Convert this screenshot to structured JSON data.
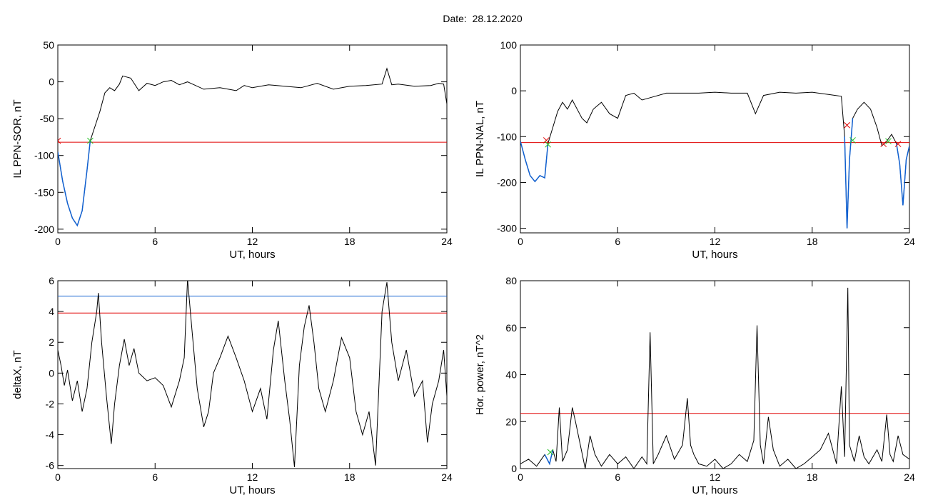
{
  "title": "Date:  28.12.2020",
  "chart_data": [
    {
      "type": "line",
      "xlabel": "UT, hours",
      "ylabel": "IL PPN-SOR, nT",
      "xlim": [
        0,
        24
      ],
      "ylim": [
        -205,
        50
      ],
      "xticks": [
        0,
        6,
        12,
        18,
        24
      ],
      "yticks": [
        50,
        0,
        -50,
        -100,
        -150,
        -200
      ],
      "hlines": [
        {
          "value": -82,
          "color": "#e00000"
        }
      ],
      "series": [
        {
          "color": "#000000",
          "x": [
            0,
            0.3,
            0.6,
            0.9,
            1.2,
            1.5,
            1.8,
            2.0,
            2.3,
            2.6,
            2.9,
            3.2,
            3.5,
            3.8,
            4.0,
            4.5,
            5.0,
            5.5,
            6.0,
            6.5,
            7.0,
            7.5,
            8.0,
            9.0,
            10.0,
            11.0,
            11.5,
            12.0,
            13.0,
            14.0,
            15.0,
            16.0,
            17.0,
            18.0,
            19.0,
            20.0,
            20.3,
            20.6,
            21.0,
            22.0,
            23.0,
            23.5,
            23.8,
            24.0
          ],
          "y": [
            -95,
            -135,
            -165,
            -185,
            -195,
            -175,
            -120,
            -80,
            -60,
            -40,
            -15,
            -8,
            -12,
            -3,
            8,
            5,
            -12,
            -2,
            -5,
            0,
            2,
            -4,
            0,
            -10,
            -8,
            -12,
            -5,
            -8,
            -4,
            -6,
            -8,
            -2,
            -10,
            -6,
            -5,
            -3,
            18,
            -4,
            -3,
            -6,
            -5,
            -2,
            -3,
            -30
          ],
          "color_ranges": [
            {
              "from": 0,
              "to": 2.0,
              "color": "#1060d0"
            }
          ]
        }
      ],
      "markers": [
        {
          "x": 0.0,
          "y": -80,
          "symbol": "x",
          "color": "#e00000"
        },
        {
          "x": 2.0,
          "y": -80,
          "symbol": "x",
          "color": "#20c020"
        }
      ]
    },
    {
      "type": "line",
      "xlabel": "UT, hours",
      "ylabel": "IL PPN-NAL, nT",
      "xlim": [
        0,
        24
      ],
      "ylim": [
        -310,
        100
      ],
      "xticks": [
        0,
        6,
        12,
        18,
        24
      ],
      "yticks": [
        100,
        0,
        -100,
        -200,
        -300
      ],
      "hlines": [
        {
          "value": -113,
          "color": "#e00000"
        }
      ],
      "series": [
        {
          "color": "#000000",
          "x": [
            0,
            0.3,
            0.6,
            0.9,
            1.2,
            1.5,
            1.7,
            2.0,
            2.3,
            2.6,
            2.9,
            3.2,
            3.5,
            3.8,
            4.1,
            4.5,
            5.0,
            5.5,
            6.0,
            6.5,
            7.0,
            7.5,
            8.0,
            9.0,
            10.0,
            11.0,
            12.0,
            13.0,
            14.0,
            14.5,
            15.0,
            16.0,
            17.0,
            18.0,
            19.0,
            19.8,
            20.0,
            20.15,
            20.3,
            20.5,
            20.8,
            21.2,
            21.6,
            22.0,
            22.3,
            22.6,
            22.9,
            23.2,
            23.4,
            23.6,
            23.8,
            24.0
          ],
          "y": [
            -110,
            -150,
            -185,
            -198,
            -185,
            -190,
            -115,
            -80,
            -45,
            -25,
            -40,
            -20,
            -40,
            -60,
            -70,
            -40,
            -25,
            -50,
            -60,
            -10,
            -5,
            -20,
            -15,
            -5,
            -5,
            -5,
            -3,
            -5,
            -5,
            -50,
            -10,
            -3,
            -5,
            -3,
            -8,
            -12,
            -100,
            -300,
            -150,
            -60,
            -40,
            -25,
            -40,
            -80,
            -120,
            -110,
            -95,
            -115,
            -160,
            -250,
            -150,
            -120
          ],
          "color_ranges": [
            {
              "from": 0,
              "to": 1.7,
              "color": "#1060d0"
            },
            {
              "from": 20.0,
              "to": 20.5,
              "color": "#1060d0"
            },
            {
              "from": 23.2,
              "to": 24,
              "color": "#1060d0"
            }
          ]
        }
      ],
      "markers": [
        {
          "x": 1.6,
          "y": -108,
          "symbol": "x",
          "color": "#e00000"
        },
        {
          "x": 1.7,
          "y": -117,
          "symbol": "x",
          "color": "#20c020"
        },
        {
          "x": 20.15,
          "y": -75,
          "symbol": "x",
          "color": "#e00000"
        },
        {
          "x": 20.5,
          "y": -108,
          "symbol": "x",
          "color": "#20c020"
        },
        {
          "x": 22.4,
          "y": -116,
          "symbol": "x",
          "color": "#e00000"
        },
        {
          "x": 22.7,
          "y": -110,
          "symbol": "x",
          "color": "#20c020"
        },
        {
          "x": 23.3,
          "y": -116,
          "symbol": "x",
          "color": "#e00000"
        }
      ]
    },
    {
      "type": "line",
      "xlabel": "UT, hours",
      "ylabel": "deltaX, nT",
      "xlim": [
        0,
        24
      ],
      "ylim": [
        -6.2,
        6
      ],
      "xticks": [
        0,
        6,
        12,
        18,
        24
      ],
      "yticks": [
        6,
        4,
        2,
        0,
        -2,
        -4,
        -6
      ],
      "hlines": [
        {
          "value": 5.0,
          "color": "#1060d0"
        },
        {
          "value": 3.9,
          "color": "#e00000"
        }
      ],
      "series": [
        {
          "color": "#000000",
          "x": [
            0,
            0.2,
            0.4,
            0.6,
            0.9,
            1.2,
            1.5,
            1.8,
            2.1,
            2.4,
            2.5,
            2.7,
            3.0,
            3.3,
            3.5,
            3.8,
            4.1,
            4.4,
            4.7,
            5.0,
            5.5,
            6.0,
            6.5,
            7.0,
            7.5,
            7.8,
            8.0,
            8.3,
            8.6,
            9.0,
            9.3,
            9.6,
            10.0,
            10.5,
            11.0,
            11.5,
            12.0,
            12.5,
            12.9,
            13.3,
            13.6,
            14.0,
            14.3,
            14.6,
            14.9,
            15.2,
            15.5,
            15.8,
            16.1,
            16.5,
            17.0,
            17.5,
            18.0,
            18.4,
            18.8,
            19.2,
            19.6,
            20.0,
            20.3,
            20.6,
            21.0,
            21.5,
            22.0,
            22.5,
            22.8,
            23.1,
            23.5,
            23.8,
            24.0
          ],
          "y": [
            1.5,
            0.5,
            -0.8,
            0.2,
            -1.8,
            -0.5,
            -2.5,
            -1.0,
            2.0,
            4.0,
            5.2,
            2.0,
            -1.5,
            -4.6,
            -2.0,
            0.5,
            2.2,
            0.5,
            1.6,
            0.0,
            -0.5,
            -0.3,
            -0.8,
            -2.2,
            -0.5,
            1.0,
            6.1,
            2.5,
            -1.0,
            -3.5,
            -2.5,
            0.0,
            1.0,
            2.4,
            1.0,
            -0.5,
            -2.5,
            -1.0,
            -3.0,
            1.5,
            3.4,
            -0.5,
            -3.0,
            -6.1,
            0.5,
            3.0,
            4.4,
            2.0,
            -1.0,
            -2.5,
            -0.5,
            2.3,
            1.0,
            -2.5,
            -4.0,
            -2.5,
            -6.0,
            4.0,
            5.9,
            2.0,
            -0.5,
            1.5,
            -1.5,
            -0.5,
            -4.5,
            -2.0,
            -0.5,
            1.5,
            -1.5
          ]
        }
      ],
      "markers": []
    },
    {
      "type": "line",
      "xlabel": "UT, hours",
      "ylabel": "Hor. power, nT^2",
      "xlim": [
        0,
        24
      ],
      "ylim": [
        0,
        80
      ],
      "xticks": [
        0,
        6,
        12,
        18,
        24
      ],
      "yticks": [
        0,
        20,
        40,
        60,
        80
      ],
      "hlines": [
        {
          "value": 23.5,
          "color": "#e00000"
        }
      ],
      "series": [
        {
          "color": "#000000",
          "x": [
            0,
            0.5,
            1.0,
            1.5,
            1.8,
            2.0,
            2.2,
            2.4,
            2.6,
            2.9,
            3.2,
            3.4,
            3.7,
            4.0,
            4.3,
            4.6,
            5.0,
            5.5,
            6.0,
            6.5,
            7.0,
            7.5,
            7.8,
            8.0,
            8.2,
            8.5,
            9.0,
            9.5,
            10.0,
            10.3,
            10.5,
            10.7,
            11.0,
            11.5,
            12.0,
            12.5,
            13.0,
            13.5,
            14.0,
            14.4,
            14.6,
            14.8,
            15.0,
            15.3,
            15.6,
            16.0,
            16.5,
            17.0,
            17.5,
            18.0,
            18.5,
            19.0,
            19.5,
            19.8,
            20.0,
            20.2,
            20.3,
            20.6,
            20.9,
            21.2,
            21.5,
            22.0,
            22.3,
            22.6,
            22.8,
            23.0,
            23.3,
            23.6,
            24.0
          ],
          "y": [
            2,
            4,
            1,
            6,
            2,
            8,
            3,
            26,
            3,
            8,
            26,
            20,
            10,
            0,
            14,
            6,
            1,
            6,
            2,
            5,
            0,
            5,
            2,
            58,
            2,
            6,
            14,
            4,
            10,
            30,
            10,
            6,
            2,
            1,
            4,
            0,
            2,
            6,
            3,
            12,
            61,
            10,
            2,
            22,
            8,
            1,
            4,
            0,
            2,
            5,
            8,
            15,
            2,
            35,
            5,
            77,
            10,
            3,
            14,
            5,
            2,
            8,
            3,
            23,
            6,
            3,
            14,
            6,
            4
          ],
          "color_ranges": [
            {
              "from": 1.5,
              "to": 2.0,
              "color": "#1060d0"
            }
          ]
        }
      ],
      "markers": [
        {
          "x": 1.85,
          "y": 7,
          "symbol": "x",
          "color": "#20c020"
        }
      ]
    }
  ]
}
